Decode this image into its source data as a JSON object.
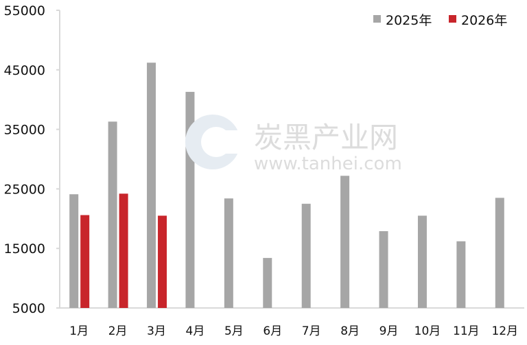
{
  "chart_data": {
    "type": "bar",
    "categories": [
      "1月",
      "2月",
      "3月",
      "4月",
      "5月",
      "6月",
      "7月",
      "8月",
      "9月",
      "10月",
      "11月",
      "12月"
    ],
    "series": [
      {
        "name": "2025年",
        "color": "#a6a6a6",
        "values": [
          24100,
          36300,
          46200,
          41300,
          23400,
          13400,
          22500,
          27200,
          17900,
          20500,
          16200,
          23500
        ]
      },
      {
        "name": "2026年",
        "color": "#c8252b",
        "values": [
          20600,
          24200,
          20500,
          null,
          null,
          null,
          null,
          null,
          null,
          null,
          null,
          null
        ]
      }
    ],
    "ylim": [
      5000,
      55000
    ],
    "yticks": [
      5000,
      15000,
      25000,
      35000,
      45000,
      55000
    ],
    "legend": "top-right",
    "grid": false
  },
  "watermark": {
    "brand": "炭黑产业网",
    "url": "www.tanhei.com"
  }
}
